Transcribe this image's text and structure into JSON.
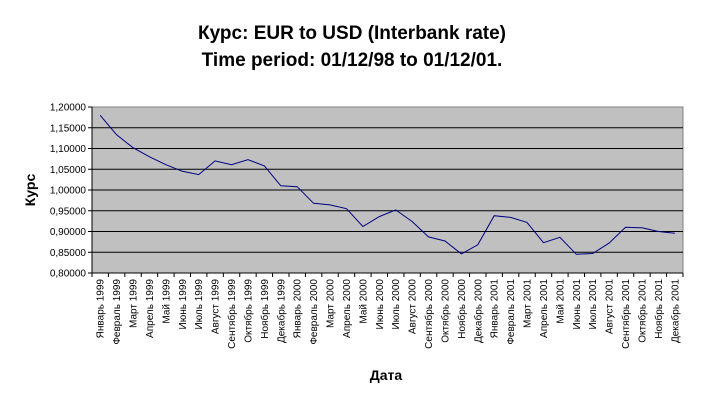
{
  "chart_data": {
    "type": "line",
    "title": "Курс: EUR to USD (Interbank rate)",
    "subtitle": "Time period: 01/12/98 to 01/12/01.",
    "xlabel": "Дата",
    "ylabel": "Курс",
    "ylim": [
      0.8,
      1.2
    ],
    "y_ticks": [
      "0,80000",
      "0,85000",
      "0,90000",
      "0,95000",
      "1,00000",
      "1,05000",
      "1,10000",
      "1,15000",
      "1,20000"
    ],
    "grid": true,
    "plot_background": "#c0c0c0",
    "line_color": "#000080",
    "categories": [
      "Январь 1999",
      "Февраль 1999",
      "Март 1999",
      "Апрель 1999",
      "Май 1999",
      "Июнь 1999",
      "Июль 1999",
      "Август 1999",
      "Сентябрь 1999",
      "Октябрь 1999",
      "Ноябрь 1999",
      "Декабрь 1999",
      "Январь 2000",
      "Февраль 2000",
      "Март 2000",
      "Апрель 2000",
      "Май 2000",
      "Июнь 2000",
      "Июль 2000",
      "Август 2000",
      "Сентябрь 2000",
      "Октябрь 2000",
      "Ноябрь 2000",
      "Декабрь 2000",
      "Январь 2001",
      "Февраль 2001",
      "Март 2001",
      "Апрель 2001",
      "Май 2001",
      "Июнь 2001",
      "Июль 2001",
      "Август 2001",
      "Сентябрь 2001",
      "Октябрь 2001",
      "Ноябрь 2001",
      "Декабрь 2001"
    ],
    "values": [
      1.18,
      1.133,
      1.102,
      1.08,
      1.061,
      1.045,
      1.037,
      1.07,
      1.061,
      1.073,
      1.058,
      1.01,
      1.008,
      0.968,
      0.964,
      0.955,
      0.912,
      0.936,
      0.952,
      0.924,
      0.887,
      0.877,
      0.846,
      0.868,
      0.938,
      0.934,
      0.922,
      0.873,
      0.886,
      0.845,
      0.847,
      0.872,
      0.91,
      0.909,
      0.9,
      0.896
    ]
  }
}
